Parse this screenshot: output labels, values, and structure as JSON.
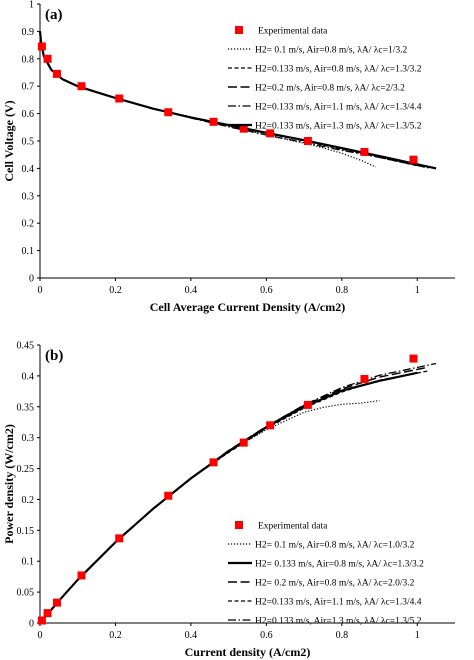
{
  "chart_data": [
    {
      "type": "line",
      "panel_label": "(a)",
      "xlabel": "Cell Average Current Density (A/cm2)",
      "ylabel": "Cell Voltage (V)",
      "xlim": [
        0,
        1.1
      ],
      "ylim": [
        0,
        1
      ],
      "xticks": [
        "0",
        "0.2",
        "0.4",
        "0.6",
        "0.8",
        "1"
      ],
      "yticks": [
        "0",
        "0.1",
        "0.2",
        "0.3",
        "0.4",
        "0.5",
        "0.6",
        "0.7",
        "0.8",
        "0.9",
        "1"
      ],
      "legend_position": "top-right",
      "experimental": {
        "name": "Experimental data",
        "color": "#ff0000",
        "x": [
          0.005,
          0.02,
          0.045,
          0.11,
          0.21,
          0.34,
          0.46,
          0.54,
          0.61,
          0.71,
          0.86,
          0.99
        ],
        "y": [
          0.845,
          0.8,
          0.745,
          0.7,
          0.655,
          0.605,
          0.57,
          0.545,
          0.528,
          0.5,
          0.46,
          0.432
        ]
      },
      "series": [
        {
          "name": "H2= 0.1 m/s, Air=0.8 m/s,  λA/ λc=1/3.2",
          "style": "dotted",
          "x": [
            0,
            0.003,
            0.01,
            0.03,
            0.06,
            0.1,
            0.15,
            0.2,
            0.3,
            0.4,
            0.5,
            0.6,
            0.7,
            0.75,
            0.8,
            0.85,
            0.89
          ],
          "y": [
            0.9,
            0.86,
            0.81,
            0.76,
            0.725,
            0.7,
            0.678,
            0.657,
            0.618,
            0.585,
            0.554,
            0.522,
            0.492,
            0.475,
            0.455,
            0.43,
            0.405
          ]
        },
        {
          "name": "H2=0.133 m/s, Air=0.8 m/s,  λA/ λc=1.3/3.2",
          "style": "dashed",
          "x": [
            0,
            0.003,
            0.01,
            0.03,
            0.06,
            0.1,
            0.15,
            0.2,
            0.3,
            0.4,
            0.5,
            0.6,
            0.7,
            0.8,
            0.9,
            1.0
          ],
          "y": [
            0.9,
            0.86,
            0.81,
            0.76,
            0.725,
            0.7,
            0.678,
            0.657,
            0.618,
            0.585,
            0.556,
            0.528,
            0.5,
            0.47,
            0.44,
            0.41
          ]
        },
        {
          "name": "H2=0.2 m/s, Air=0.8 m/s,  λA/ λc=2/3.2",
          "style": "longdash",
          "x": [
            0,
            0.003,
            0.01,
            0.03,
            0.06,
            0.1,
            0.15,
            0.2,
            0.3,
            0.4,
            0.5,
            0.6,
            0.7,
            0.8,
            0.9,
            1.02
          ],
          "y": [
            0.9,
            0.86,
            0.81,
            0.76,
            0.725,
            0.7,
            0.678,
            0.657,
            0.618,
            0.586,
            0.558,
            0.53,
            0.502,
            0.473,
            0.443,
            0.405
          ]
        },
        {
          "name": "H2=0.133 m/s, Air=1.1 m/s,  λA/ λc=1.3/4.4",
          "style": "dashdot",
          "x": [
            0,
            0.003,
            0.01,
            0.03,
            0.06,
            0.1,
            0.15,
            0.2,
            0.3,
            0.4,
            0.5,
            0.6,
            0.7,
            0.8,
            0.9,
            1.03
          ],
          "y": [
            0.9,
            0.86,
            0.81,
            0.76,
            0.725,
            0.7,
            0.678,
            0.657,
            0.618,
            0.584,
            0.552,
            0.522,
            0.494,
            0.466,
            0.44,
            0.402
          ]
        },
        {
          "name": "H2=0.133 m/s, Air=1.3 m/s,  λA/ λc=1.3/5.2",
          "style": "solid",
          "x": [
            0,
            0.003,
            0.01,
            0.03,
            0.06,
            0.1,
            0.15,
            0.2,
            0.3,
            0.4,
            0.5,
            0.6,
            0.7,
            0.8,
            0.9,
            1.05
          ],
          "y": [
            0.9,
            0.86,
            0.81,
            0.76,
            0.725,
            0.7,
            0.678,
            0.657,
            0.618,
            0.586,
            0.558,
            0.53,
            0.503,
            0.474,
            0.445,
            0.4
          ]
        }
      ]
    },
    {
      "type": "line",
      "panel_label": "(b)",
      "xlabel": "Current density (A/cm2)",
      "ylabel": "Power density (W/cm2)",
      "xlim": [
        0,
        1.1
      ],
      "ylim": [
        0,
        0.45
      ],
      "xticks": [
        "0",
        "0.2",
        "0.4",
        "0.6",
        "0.8",
        "1"
      ],
      "yticks": [
        "0",
        "0.05",
        "0.1",
        "0.15",
        "0.2",
        "0.25",
        "0.3",
        "0.35",
        "0.4",
        "0.45"
      ],
      "legend_position": "bottom-right",
      "experimental": {
        "name": "Experimental data",
        "color": "#ff0000",
        "x": [
          0.005,
          0.02,
          0.045,
          0.11,
          0.21,
          0.34,
          0.46,
          0.54,
          0.61,
          0.71,
          0.86,
          0.99
        ],
        "y": [
          0.004,
          0.016,
          0.033,
          0.077,
          0.137,
          0.206,
          0.26,
          0.292,
          0.32,
          0.353,
          0.395,
          0.428
        ]
      },
      "series": [
        {
          "name": "H2= 0.1 m/s, Air=0.8 m/s,  λA/ λc=1.0/3.2",
          "style": "dotted",
          "x": [
            0,
            0.05,
            0.1,
            0.2,
            0.3,
            0.4,
            0.5,
            0.6,
            0.7,
            0.75,
            0.8,
            0.85,
            0.9
          ],
          "y": [
            0,
            0.036,
            0.07,
            0.131,
            0.185,
            0.234,
            0.277,
            0.313,
            0.341,
            0.349,
            0.354,
            0.356,
            0.36
          ]
        },
        {
          "name": "H2= 0.133 m/s, Air=0.8 m/s,  λA/ λc=1.3/3.2",
          "style": "solid",
          "x": [
            0,
            0.05,
            0.1,
            0.2,
            0.3,
            0.4,
            0.5,
            0.6,
            0.7,
            0.8,
            0.9,
            1.0
          ],
          "y": [
            0,
            0.036,
            0.07,
            0.131,
            0.185,
            0.234,
            0.278,
            0.317,
            0.35,
            0.376,
            0.392,
            0.405
          ]
        },
        {
          "name": "H2= 0.2 m/s, Air=0.8 m/s,  λA/ λc=2.0/3.2",
          "style": "longdash",
          "x": [
            0,
            0.05,
            0.1,
            0.2,
            0.3,
            0.4,
            0.5,
            0.6,
            0.7,
            0.8,
            0.9,
            1.02
          ],
          "y": [
            0,
            0.036,
            0.07,
            0.131,
            0.185,
            0.234,
            0.279,
            0.318,
            0.352,
            0.379,
            0.398,
            0.413
          ]
        },
        {
          "name": "H2=0.133 m/s, Air=1.1 m/s,  λA/ λc=1.3/4.4",
          "style": "dashed",
          "x": [
            0,
            0.05,
            0.1,
            0.2,
            0.3,
            0.4,
            0.5,
            0.6,
            0.7,
            0.8,
            0.9,
            1.03
          ],
          "y": [
            0,
            0.036,
            0.07,
            0.131,
            0.185,
            0.234,
            0.276,
            0.315,
            0.348,
            0.374,
            0.393,
            0.408
          ]
        },
        {
          "name": "H2=0.133 m/s, Air=1.3 m/s,  λA/ λc=1.3/5.2",
          "style": "dashdot",
          "x": [
            0,
            0.05,
            0.1,
            0.2,
            0.3,
            0.4,
            0.5,
            0.6,
            0.7,
            0.8,
            0.9,
            1.05
          ],
          "y": [
            0,
            0.036,
            0.07,
            0.131,
            0.185,
            0.234,
            0.279,
            0.318,
            0.353,
            0.381,
            0.401,
            0.42
          ]
        }
      ]
    }
  ]
}
